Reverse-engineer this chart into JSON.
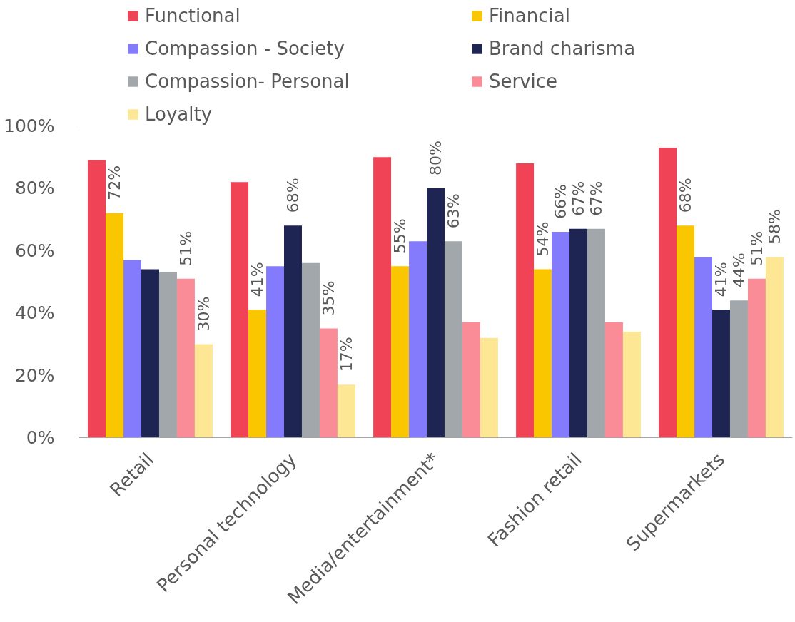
{
  "chart_data": {
    "type": "bar",
    "categories": [
      "Retail",
      "Personal technology",
      "Media/entertainment*",
      "Fashion retail",
      "Supermarkets"
    ],
    "series": [
      {
        "name": "Functional",
        "color": "#f04355",
        "values": [
          89,
          82,
          90,
          88,
          93
        ]
      },
      {
        "name": "Financial",
        "color": "#f9c600",
        "values": [
          72,
          41,
          55,
          54,
          68
        ],
        "value_labels": [
          "72%",
          "41%",
          "55%",
          "54%",
          "68%"
        ]
      },
      {
        "name": "Compassion - Society",
        "color": "#847bfc",
        "values": [
          57,
          55,
          63,
          66,
          58
        ],
        "value_labels": [
          null,
          null,
          null,
          "66%",
          null
        ]
      },
      {
        "name": "Brand charisma",
        "color": "#1f2552",
        "values": [
          54,
          68,
          80,
          67,
          41
        ],
        "value_labels": [
          null,
          "68%",
          "80%",
          "67%",
          "41%"
        ]
      },
      {
        "name": "Compassion- Personal",
        "color": "#a1a7ab",
        "values": [
          53,
          56,
          63,
          67,
          44
        ],
        "value_labels": [
          null,
          null,
          "63%",
          "67%",
          "44%"
        ]
      },
      {
        "name": "Service",
        "color": "#f98c96",
        "values": [
          51,
          35,
          37,
          37,
          51
        ],
        "value_labels": [
          "51%",
          "35%",
          null,
          null,
          "51%"
        ]
      },
      {
        "name": "Loyalty",
        "color": "#fde795",
        "values": [
          30,
          17,
          32,
          34,
          58
        ],
        "value_labels": [
          "30%",
          "17%",
          null,
          null,
          "58%"
        ]
      }
    ],
    "ylim": [
      0,
      100
    ],
    "yticks": [
      {
        "value": 0,
        "label": "0%"
      },
      {
        "value": 20,
        "label": "20%"
      },
      {
        "value": 40,
        "label": "40%"
      },
      {
        "value": 60,
        "label": "60%"
      },
      {
        "value": 80,
        "label": "80%"
      },
      {
        "value": 100,
        "label": "100%"
      }
    ],
    "legend": "top"
  }
}
